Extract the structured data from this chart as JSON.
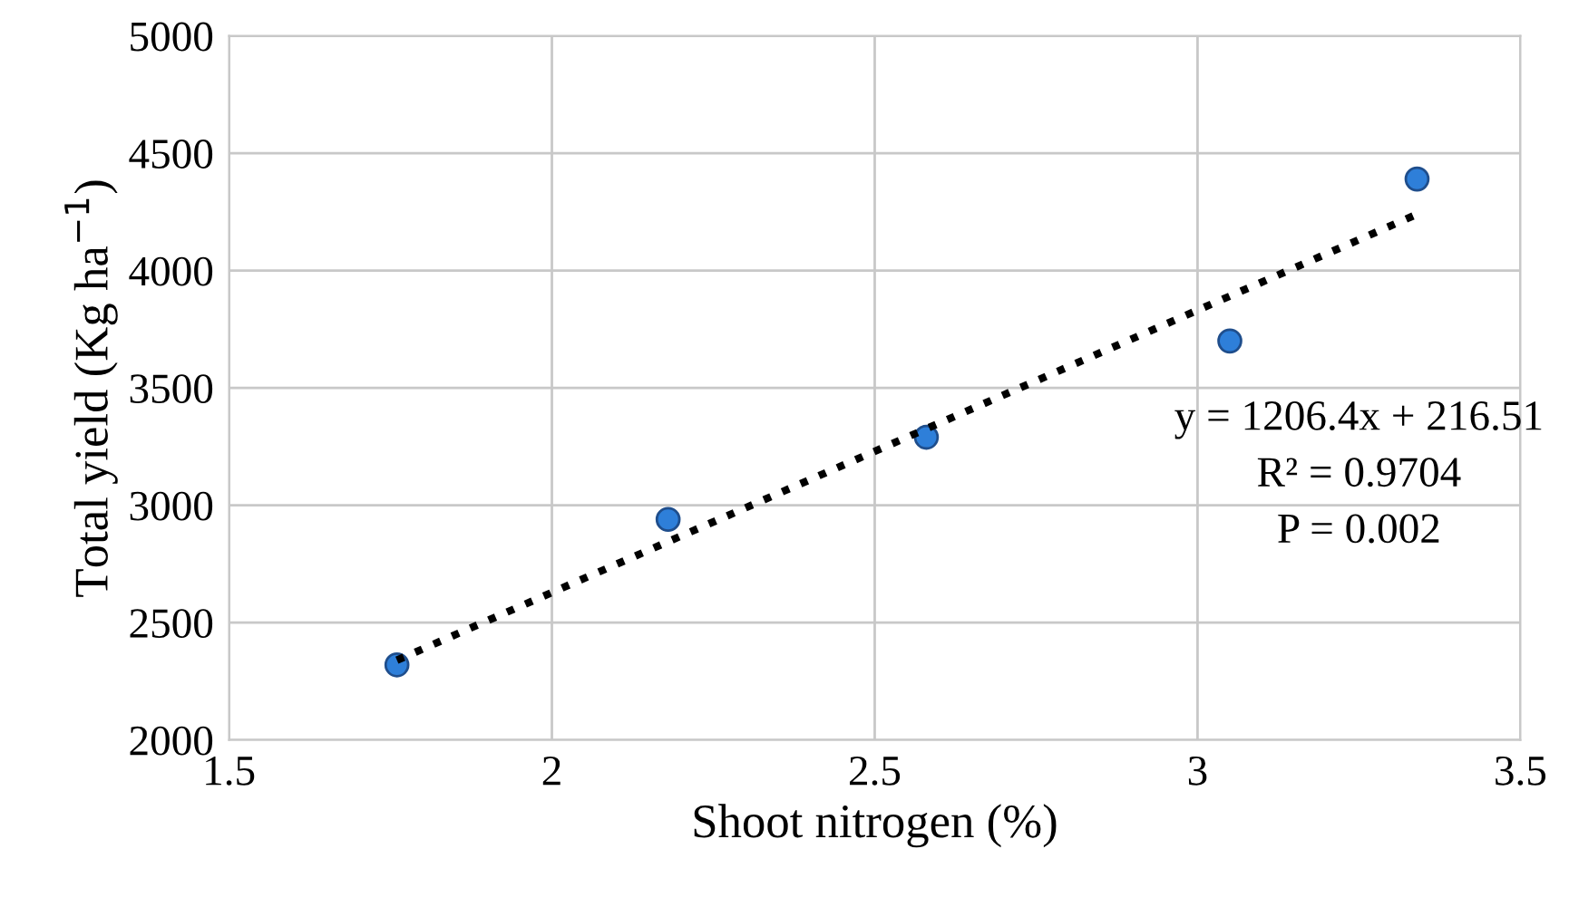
{
  "chart_data": {
    "type": "scatter",
    "xlabel": "Shoot nitrogen (%)",
    "ylabel": "Total yield (Kg ha$^{−1}$)",
    "x": [
      1.76,
      2.18,
      2.58,
      3.05,
      3.34
    ],
    "series": [
      {
        "color": "#2e7fd9",
        "values": [
          2320,
          2940,
          3290,
          3700,
          4390
        ],
        "marker": "circle"
      },
      {
        "type": "line",
        "color": "#000000",
        "x": [
          1.76,
          3.34
        ],
        "values": [
          2340,
          4240
        ],
        "line_style": "dotted",
        "marker": "none"
      }
    ],
    "xlim": [
      1.5,
      3.5
    ],
    "xticks": [
      1.5,
      2,
      2.5,
      3,
      3.5
    ],
    "ylim": [
      2000,
      5000
    ],
    "yticks": [
      2000,
      2500,
      3000,
      3500,
      4000,
      4500,
      5000
    ],
    "grid": true,
    "legend": false,
    "annotations": [
      "y = 1206.4x + 216.51",
      "R² = 0.9704",
      "P = 0.002"
    ]
  }
}
